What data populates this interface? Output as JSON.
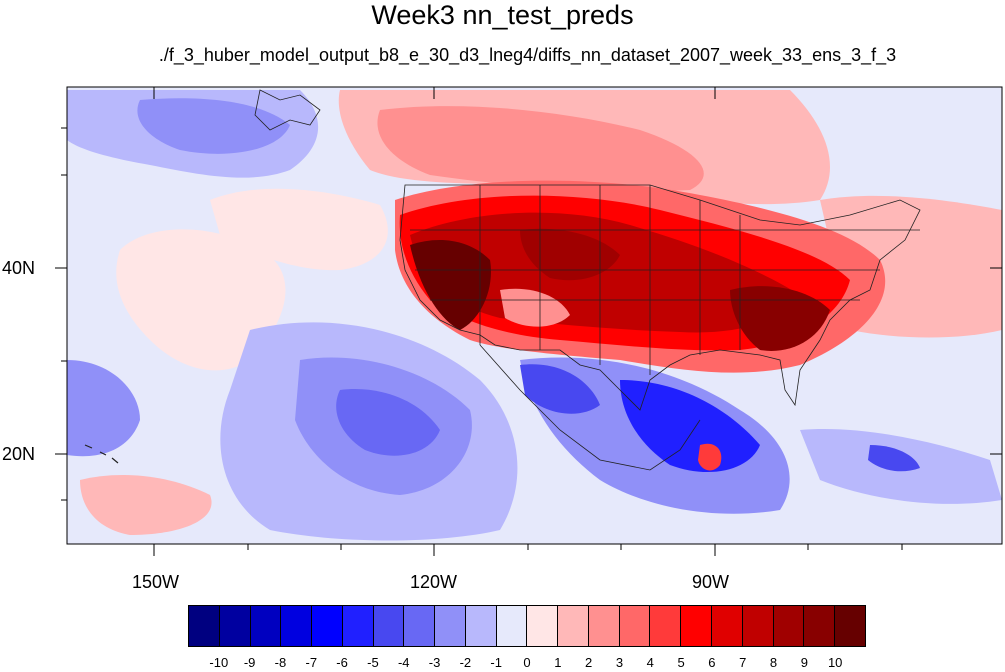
{
  "title": "Week3 nn_test_preds",
  "subtitle": "./f_3_huber_model_output_b8_e_30_d3_lneg4/diffs_nn_dataset_2007_week_33_ens_3_f_3",
  "map": {
    "lon_labels": [
      "150W",
      "120W",
      "90W"
    ],
    "lat_labels": [
      "40N",
      "20N"
    ],
    "background_color": "#e6e9fb"
  },
  "colorbar": {
    "levels": [
      "-10",
      "-9",
      "-8",
      "-7",
      "-6",
      "-5",
      "-4",
      "-3",
      "-2",
      "-1",
      "0",
      "1",
      "2",
      "3",
      "4",
      "5",
      "6",
      "7",
      "8",
      "9",
      "10"
    ],
    "colors": [
      "#000080",
      "#0000a0",
      "#0000c0",
      "#0000e0",
      "#0000ff",
      "#2020ff",
      "#4848f0",
      "#6868f4",
      "#9090f8",
      "#b8b8fc",
      "#e6e9fb",
      "#ffe6e6",
      "#ffb8b8",
      "#ff9090",
      "#ff6868",
      "#ff3a3a",
      "#ff0000",
      "#e00000",
      "#c00000",
      "#a00000",
      "#880000",
      "#660000"
    ]
  }
}
